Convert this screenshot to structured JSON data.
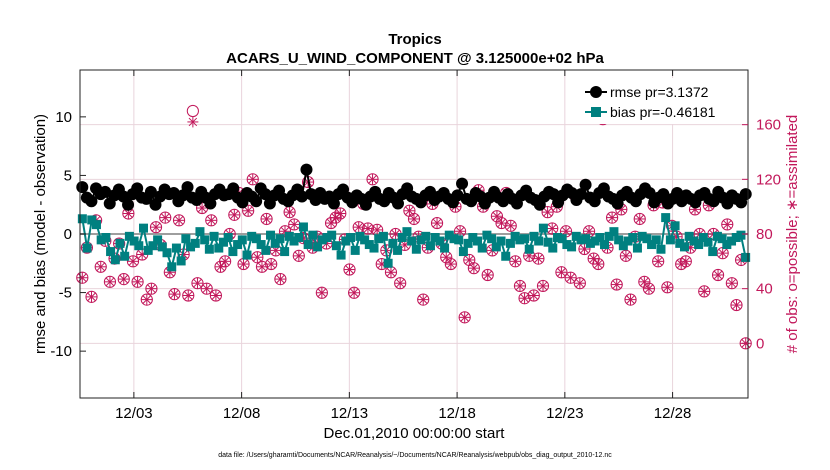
{
  "chart_data": {
    "type": "line",
    "title": "Tropics",
    "subtitle": "ACARS_U_WIND_COMPONENT @ 3.125000e+02 hPa",
    "xlabel": "Dec.01,2010 00:00:00 start",
    "ylabel_left": "rmse and bias (model - observation)",
    "ylabel_right": "# of obs: o=possible; ∗=assimilated",
    "footnote": "data file: /Users/gharamti/Documents/NCAR/Reanalysis/~/Documents/NCAR/Reanalysis/webpub/obs_diag_output_2010-12.nc",
    "x_range": [
      0,
      31
    ],
    "ylim_left": [
      -14,
      14
    ],
    "ylim_right": [
      -40,
      200
    ],
    "x_ticks": [
      {
        "value": 2.5,
        "label": "12/03"
      },
      {
        "value": 7.5,
        "label": "12/08"
      },
      {
        "value": 12.5,
        "label": "12/13"
      },
      {
        "value": 17.5,
        "label": "12/18"
      },
      {
        "value": 22.5,
        "label": "12/23"
      },
      {
        "value": 27.5,
        "label": "12/28"
      }
    ],
    "y_ticks_left": [
      {
        "value": 10,
        "label": "10"
      },
      {
        "value": 5,
        "label": "5"
      },
      {
        "value": 0,
        "label": "0"
      },
      {
        "value": -5,
        "label": "-5"
      },
      {
        "value": -10,
        "label": "-10"
      }
    ],
    "y_ticks_right": [
      {
        "value": 160,
        "label": "160"
      },
      {
        "value": 120,
        "label": "120"
      },
      {
        "value": 80,
        "label": "80"
      },
      {
        "value": 40,
        "label": "40"
      },
      {
        "value": 0,
        "label": "0"
      }
    ],
    "legend": {
      "position": "top-right"
    },
    "colors": {
      "rmse": "#000000",
      "bias": "#008080",
      "obs": "#c2185b",
      "zero_line": "#9e9e9e",
      "grid": "#e9d4dc"
    },
    "series": [
      {
        "name": "rmse pr=3.1372",
        "key": "rmse",
        "axis": "left",
        "marker": "circle",
        "values": [
          4.0,
          3.1,
          2.8,
          3.9,
          3.4,
          3.6,
          2.6,
          3.3,
          3.8,
          3.2,
          2.5,
          3.4,
          3.9,
          3.1,
          3.0,
          3.6,
          2.5,
          3.2,
          3.8,
          3.4,
          3.5,
          2.8,
          3.3,
          4.0,
          3.1,
          2.9,
          3.6,
          3.1,
          2.6,
          3.4,
          3.8,
          3.3,
          3.4,
          3.9,
          3.1,
          2.7,
          3.5,
          3.2,
          2.8,
          3.9,
          3.4,
          2.6,
          3.3,
          3.7,
          3.0,
          2.8,
          3.3,
          3.8,
          3.2,
          5.5,
          3.4,
          2.9,
          3.5,
          3.0,
          3.2,
          2.6,
          3.4,
          3.8,
          3.1,
          2.7,
          3.3,
          3.0,
          2.5,
          3.2,
          3.6,
          3.0,
          2.8,
          3.5,
          3.1,
          2.6,
          3.4,
          3.9,
          3.2,
          3.0,
          2.7,
          3.3,
          3.6,
          2.9,
          3.2,
          3.5,
          3.0,
          2.7,
          3.3,
          4.3,
          3.0,
          2.8,
          3.5,
          3.2,
          2.6,
          3.1,
          3.6,
          3.1,
          2.8,
          3.4,
          3.0,
          2.6,
          3.3,
          3.7,
          3.1,
          2.9,
          2.5,
          3.2,
          3.6,
          3.4,
          2.7,
          3.3,
          3.8,
          3.5,
          2.9,
          3.4,
          4.2,
          3.1,
          2.8,
          3.5,
          3.9,
          3.2,
          3.0,
          2.6,
          3.3,
          3.6,
          3.1,
          2.8,
          3.4,
          3.9,
          3.5,
          2.7,
          3.1,
          3.4,
          2.6,
          3.0,
          3.5,
          2.8,
          3.3,
          3.0,
          2.7,
          3.3,
          3.5,
          3.0,
          2.8,
          3.6,
          3.1,
          2.6,
          3.3,
          3.0,
          2.7,
          3.4
        ]
      },
      {
        "name": "bias pr=-0.46181",
        "key": "bias",
        "axis": "left",
        "marker": "square",
        "values": [
          1.3,
          -1.2,
          1.2,
          0.8,
          -0.5,
          -0.3,
          -1.5,
          -2.2,
          -0.8,
          -1.9,
          -0.2,
          -0.6,
          -1.0,
          0.5,
          -1.4,
          -1.0,
          -0.5,
          -1.1,
          -1.6,
          -2.8,
          -1.2,
          -2.3,
          -0.4,
          -1.1,
          -0.8,
          0.2,
          -0.5,
          -1.3,
          -0.2,
          -1.2,
          -0.7,
          -0.3,
          -1.5,
          -0.9,
          -0.5,
          -1.8,
          -0.2,
          -0.4,
          -0.9,
          -1.4,
          -0.1,
          -0.8,
          -0.4,
          -1.5,
          -0.2,
          -0.6,
          -0.3,
          0.6,
          -0.9,
          -0.1,
          -1.1,
          -0.5,
          -0.3,
          -0.1,
          -1.0,
          -1.8,
          -0.6,
          -0.3,
          -1.4,
          -0.2,
          -0.5,
          -0.9,
          -1.2,
          -0.4,
          -0.2,
          -2.5,
          -0.8,
          -1.4,
          -0.3,
          0.2,
          -0.6,
          -1.3,
          -0.5,
          -0.2,
          -1.0,
          -0.3,
          -0.6,
          -1.2,
          -0.1,
          -0.4,
          -0.5,
          -1.5,
          -0.8,
          -0.3,
          -0.6,
          -1.2,
          -0.1,
          -0.4,
          -1.1,
          -0.6,
          -1.9,
          -0.8,
          -0.2,
          -0.5,
          -0.4,
          -1.3,
          -0.2,
          -0.6,
          0.5,
          -0.7,
          -1.2,
          -0.3,
          -0.4,
          -0.9,
          -1.1,
          -0.2,
          -0.5,
          -0.4,
          -0.8,
          -0.6,
          -0.3,
          -0.9,
          -0.2,
          0.2,
          -0.5,
          -1.0,
          -0.6,
          -0.3,
          -1.2,
          -0.2,
          -0.4,
          -0.9,
          -0.5,
          -1.3,
          1.4,
          -0.5,
          0.7,
          -0.8,
          -1.1,
          -0.2,
          -0.6,
          -0.9,
          -0.3,
          -0.7,
          -1.5,
          -0.2,
          -0.4,
          -0.9,
          -0.6,
          -0.3,
          -0.1,
          -2.0
        ]
      },
      {
        "name": "possible (o)",
        "key": "possible",
        "axis": "right",
        "marker": "open-circle",
        "values": [
          48,
          70,
          34,
          90,
          56,
          75,
          45,
          62,
          73,
          47,
          95,
          60,
          45,
          65,
          32,
          40,
          85,
          72,
          92,
          52,
          36,
          90,
          65,
          35,
          170,
          44,
          99,
          40,
          90,
          35,
          56,
          60,
          80,
          94,
          110,
          58,
          97,
          120,
          63,
          56,
          91,
          58,
          68,
          47,
          82,
          96,
          87,
          64,
          77,
          118,
          70,
          78,
          37,
          73,
          88,
          92,
          95,
          76,
          54,
          37,
          85,
          102,
          84,
          120,
          83,
          58,
          68,
          52,
          80,
          44,
          72,
          97,
          91,
          78,
          32,
          70,
          102,
          88,
          73,
          63,
          58,
          100,
          82,
          19,
          61,
          55,
          112,
          100,
          50,
          68,
          93,
          88,
          110,
          86,
          60,
          42,
          33,
          64,
          35,
          62,
          42,
          96,
          84,
          100,
          52,
          82,
          48,
          108,
          44,
          69,
          82,
          62,
          58,
          164,
          70,
          92,
          43,
          98,
          64,
          32,
          78,
          91,
          45,
          40,
          101,
          60,
          103,
          41,
          86,
          78,
          58,
          60,
          70,
          98,
          80,
          38,
          101,
          80,
          50,
          66,
          87,
          44,
          28,
          61,
          0
        ]
      },
      {
        "name": "assimilated (∗)",
        "key": "assimilated",
        "axis": "right",
        "marker": "asterisk",
        "values": [
          48,
          70,
          34,
          90,
          56,
          75,
          45,
          62,
          73,
          47,
          95,
          60,
          45,
          65,
          32,
          40,
          85,
          72,
          92,
          52,
          36,
          90,
          65,
          35,
          162,
          44,
          99,
          40,
          90,
          35,
          56,
          60,
          80,
          94,
          110,
          58,
          97,
          120,
          63,
          56,
          91,
          58,
          68,
          47,
          82,
          96,
          87,
          64,
          77,
          118,
          70,
          78,
          37,
          73,
          88,
          92,
          95,
          76,
          54,
          37,
          85,
          102,
          84,
          120,
          83,
          58,
          68,
          52,
          80,
          44,
          72,
          97,
          91,
          78,
          32,
          70,
          102,
          88,
          73,
          63,
          58,
          100,
          82,
          19,
          61,
          55,
          112,
          100,
          50,
          68,
          93,
          88,
          110,
          86,
          60,
          42,
          33,
          64,
          35,
          62,
          42,
          96,
          84,
          100,
          52,
          82,
          48,
          108,
          44,
          69,
          82,
          62,
          58,
          164,
          70,
          92,
          43,
          98,
          64,
          32,
          78,
          91,
          45,
          40,
          101,
          60,
          103,
          41,
          86,
          78,
          58,
          60,
          70,
          98,
          80,
          38,
          101,
          80,
          50,
          66,
          87,
          44,
          28,
          61,
          0
        ]
      }
    ]
  }
}
